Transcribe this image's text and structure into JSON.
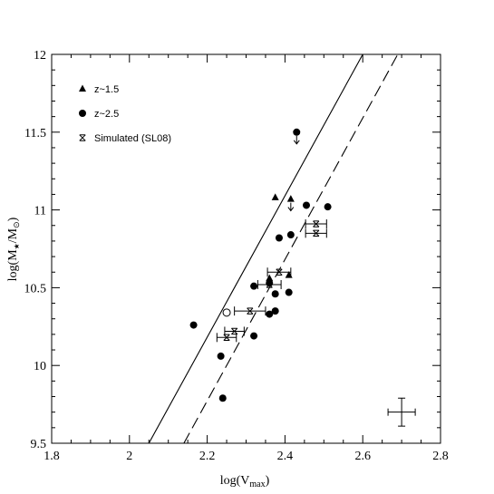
{
  "chart_data": {
    "type": "scatter",
    "xlabel": {
      "main": "log(V",
      "sub": "max",
      "close": ")"
    },
    "ylabel": {
      "main": "log(M",
      "sub1": "★",
      "mid": "/M",
      "sub2": "⊙",
      "close": ")"
    },
    "xlim": [
      1.8,
      2.8
    ],
    "ylim": [
      9.5,
      12
    ],
    "x_ticks": [
      1.8,
      2,
      2.2,
      2.4,
      2.6,
      2.8
    ],
    "x_tick_labels": [
      "1.8",
      "2",
      "2.2",
      "2.4",
      "2.6",
      "2.8"
    ],
    "y_ticks": [
      9.5,
      10,
      10.5,
      11,
      11.5,
      12
    ],
    "y_tick_labels": [
      "9.5",
      "10",
      "10.5",
      "11",
      "11.5",
      "12"
    ],
    "legend_position": "top-left",
    "legend": [
      {
        "marker": "triangle",
        "label": "z~1.5"
      },
      {
        "marker": "circle",
        "label": "z~2.5"
      },
      {
        "marker": "star",
        "label": "Simulated (SL08)"
      }
    ],
    "series": [
      {
        "name": "z~1.5",
        "marker": "triangle",
        "points": [
          {
            "x": 2.375,
            "y": 11.08
          },
          {
            "x": 2.415,
            "y": 11.07,
            "upper_limit": true
          },
          {
            "x": 2.36,
            "y": 10.56
          },
          {
            "x": 2.41,
            "y": 10.58
          }
        ]
      },
      {
        "name": "z~2.5",
        "marker": "circle",
        "points": [
          {
            "x": 2.43,
            "y": 11.5,
            "upper_limit": true
          },
          {
            "x": 2.455,
            "y": 11.03
          },
          {
            "x": 2.51,
            "y": 11.02
          },
          {
            "x": 2.385,
            "y": 10.82
          },
          {
            "x": 2.415,
            "y": 10.84
          },
          {
            "x": 2.36,
            "y": 10.53
          },
          {
            "x": 2.32,
            "y": 10.51
          },
          {
            "x": 2.375,
            "y": 10.46
          },
          {
            "x": 2.41,
            "y": 10.47
          },
          {
            "x": 2.36,
            "y": 10.33
          },
          {
            "x": 2.375,
            "y": 10.35
          },
          {
            "x": 2.165,
            "y": 10.26
          },
          {
            "x": 2.32,
            "y": 10.19
          },
          {
            "x": 2.235,
            "y": 10.06
          },
          {
            "x": 2.24,
            "y": 9.79
          }
        ]
      },
      {
        "name": "z~2.5 (open)",
        "marker": "open-circle",
        "points": [
          {
            "x": 2.25,
            "y": 10.34
          }
        ]
      },
      {
        "name": "Simulated (SL08)",
        "marker": "star",
        "points": [
          {
            "x": 2.48,
            "y": 10.91,
            "xerr": 0.027
          },
          {
            "x": 2.48,
            "y": 10.85,
            "xerr": 0.027
          },
          {
            "x": 2.385,
            "y": 10.6,
            "xerr": 0.03
          },
          {
            "x": 2.36,
            "y": 10.52,
            "xerr": 0.03
          },
          {
            "x": 2.31,
            "y": 10.35,
            "xerr": 0.04
          },
          {
            "x": 2.27,
            "y": 10.22,
            "xerr": 0.025
          },
          {
            "x": 2.25,
            "y": 10.18,
            "xerr": 0.025
          }
        ]
      }
    ],
    "lines": [
      {
        "style": "solid",
        "x1": 2.05,
        "y1": 9.5,
        "x2": 2.6,
        "y2": 12
      },
      {
        "style": "dashed",
        "x1": 2.14,
        "y1": 9.5,
        "x2": 2.69,
        "y2": 12
      }
    ],
    "typical_error": {
      "x": 2.7,
      "y": 9.7,
      "xerr": 0.035,
      "yerr": 0.09
    }
  }
}
